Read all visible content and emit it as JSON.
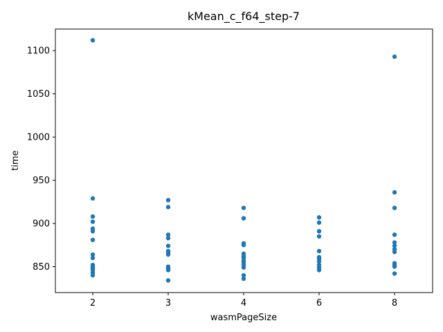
{
  "chart_data": {
    "type": "scatter",
    "title": "kMean_c_f64_step-7",
    "xlabel": "wasmPageSize",
    "ylabel": "time",
    "categories": [
      "2",
      "3",
      "4",
      "6",
      "8"
    ],
    "ylim": [
      820,
      1125
    ],
    "yticks": [
      850,
      900,
      950,
      1000,
      1050,
      1100
    ],
    "grid": false,
    "color": "#1f77b4",
    "points": {
      "2": [
        1112,
        929,
        908,
        902,
        894,
        891,
        881,
        864,
        860,
        852,
        850,
        848,
        846,
        843,
        840
      ],
      "3": [
        927,
        919,
        887,
        883,
        874,
        868,
        866,
        864,
        850,
        848,
        846,
        834
      ],
      "4": [
        918,
        906,
        877,
        875,
        865,
        862,
        860,
        857,
        855,
        852,
        849,
        840,
        836
      ],
      "6": [
        907,
        901,
        891,
        885,
        868,
        861,
        859,
        856,
        852,
        849,
        846
      ],
      "8": [
        1093,
        936,
        918,
        887,
        878,
        874,
        870,
        867,
        854,
        852,
        850,
        842
      ]
    }
  }
}
